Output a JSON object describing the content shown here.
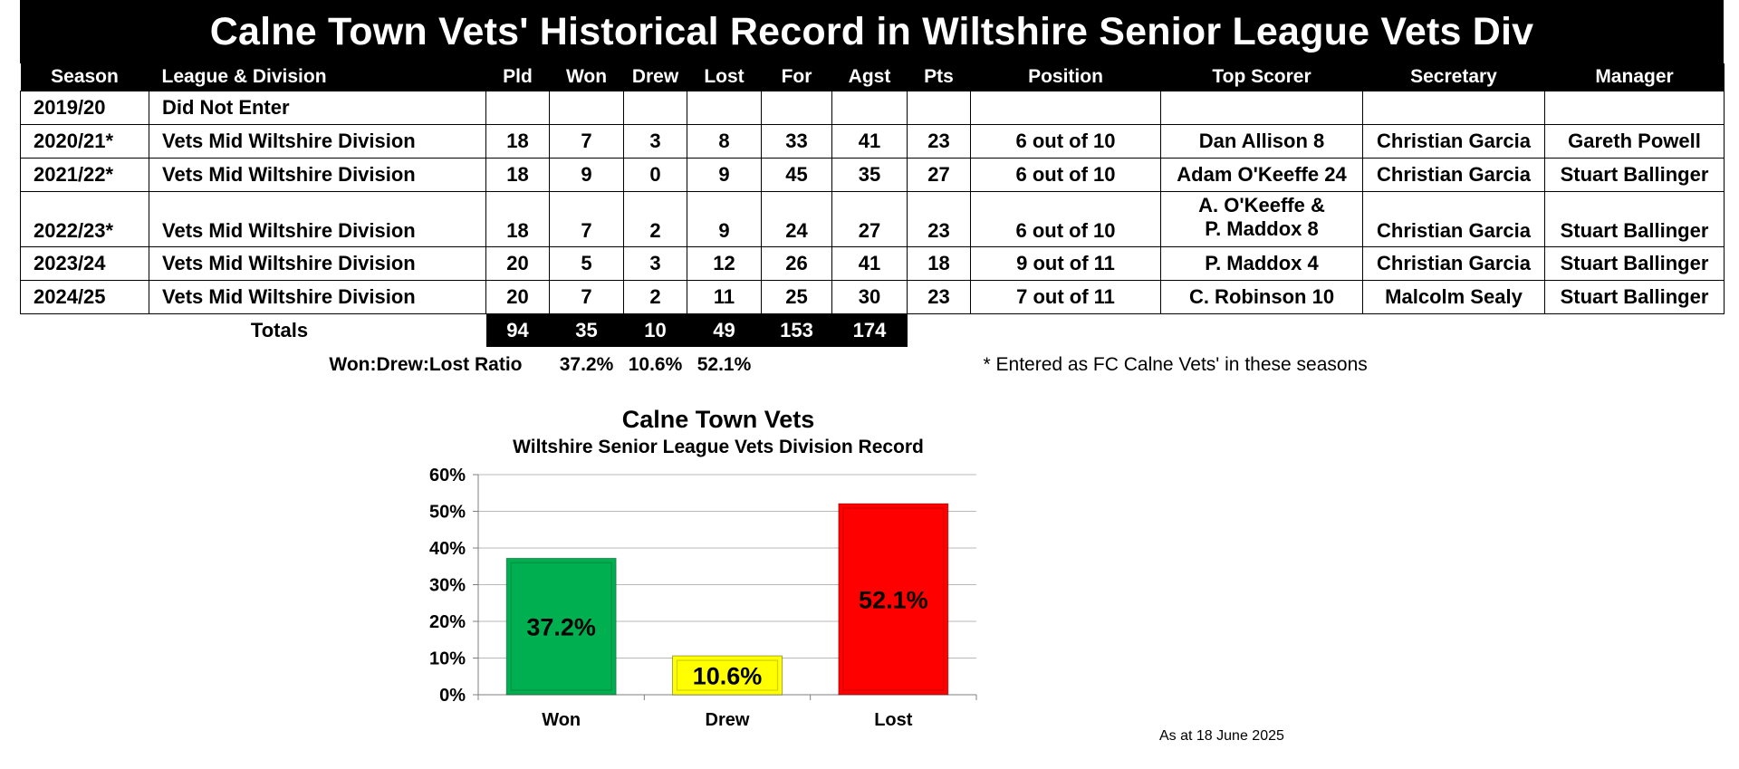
{
  "title": "Calne Town Vets' Historical Record in Wiltshire Senior League Vets Div",
  "columns": [
    "Season",
    "League & Division",
    "Pld",
    "Won",
    "Drew",
    "Lost",
    "For",
    "Agst",
    "Pts",
    "Position",
    "Top Scorer",
    "Secretary",
    "Manager"
  ],
  "rows": [
    {
      "season": "2019/20",
      "league": "Did Not Enter",
      "pld": "",
      "won": "",
      "drew": "",
      "lost": "",
      "for": "",
      "agst": "",
      "pts": "",
      "position": "",
      "scorer": "",
      "scorer2": "",
      "secretary": "",
      "manager": ""
    },
    {
      "season": "2020/21*",
      "league": "Vets Mid Wiltshire Division",
      "pld": "18",
      "won": "7",
      "drew": "3",
      "lost": "8",
      "for": "33",
      "agst": "41",
      "pts": "23",
      "position": "6 out of 10",
      "scorer": "Dan Allison 8",
      "scorer2": "",
      "secretary": "Christian Garcia",
      "manager": "Gareth Powell"
    },
    {
      "season": "2021/22*",
      "league": "Vets Mid Wiltshire Division",
      "pld": "18",
      "won": "9",
      "drew": "0",
      "lost": "9",
      "for": "45",
      "agst": "35",
      "pts": "27",
      "position": "6 out of 10",
      "scorer": "Adam O'Keeffe 24",
      "scorer2": "",
      "secretary": "Christian Garcia",
      "manager": "Stuart Ballinger"
    },
    {
      "season": "2022/23*",
      "league": "Vets Mid Wiltshire Division",
      "pld": "18",
      "won": "7",
      "drew": "2",
      "lost": "9",
      "for": "24",
      "agst": "27",
      "pts": "23",
      "position": "6 out of 10",
      "scorer": "A. O'Keeffe &",
      "scorer2": "P. Maddox 8",
      "secretary": "Christian Garcia",
      "manager": "Stuart Ballinger"
    },
    {
      "season": "2023/24",
      "league": "Vets Mid Wiltshire Division",
      "pld": "20",
      "won": "5",
      "drew": "3",
      "lost": "12",
      "for": "26",
      "agst": "41",
      "pts": "18",
      "position": "9 out of 11",
      "scorer": "P. Maddox 4",
      "scorer2": "",
      "secretary": "Christian Garcia",
      "manager": "Stuart Ballinger"
    },
    {
      "season": "2024/25",
      "league": "Vets Mid Wiltshire Division",
      "pld": "20",
      "won": "7",
      "drew": "2",
      "lost": "11",
      "for": "25",
      "agst": "30",
      "pts": "23",
      "position": "7 out of 11",
      "scorer": "C. Robinson 10",
      "scorer2": "",
      "secretary": "Malcolm Sealy",
      "manager": "Stuart Ballinger"
    }
  ],
  "totals": {
    "label": "Totals",
    "pld": "94",
    "won": "35",
    "drew": "10",
    "lost": "49",
    "for": "153",
    "agst": "174"
  },
  "ratio": {
    "label": "Won:Drew:Lost Ratio",
    "won": "37.2%",
    "drew": "10.6%",
    "lost": "52.1%"
  },
  "note": "* Entered as FC Calne Vets' in these seasons",
  "as_at": "As at 18 June 2025",
  "chart_data": {
    "type": "bar",
    "title": "Calne Town Vets",
    "subtitle": "Wiltshire Senior League Vets Division Record",
    "categories": [
      "Won",
      "Drew",
      "Lost"
    ],
    "values": [
      37.2,
      10.6,
      52.1
    ],
    "data_labels": [
      "37.2%",
      "10.6%",
      "52.1%"
    ],
    "colors": [
      "#00b050",
      "#ffff00",
      "#ff0000"
    ],
    "ylim": [
      0,
      60
    ],
    "yticks": [
      "0%",
      "10%",
      "20%",
      "30%",
      "40%",
      "50%",
      "60%"
    ],
    "grid": true,
    "legend": "none"
  }
}
